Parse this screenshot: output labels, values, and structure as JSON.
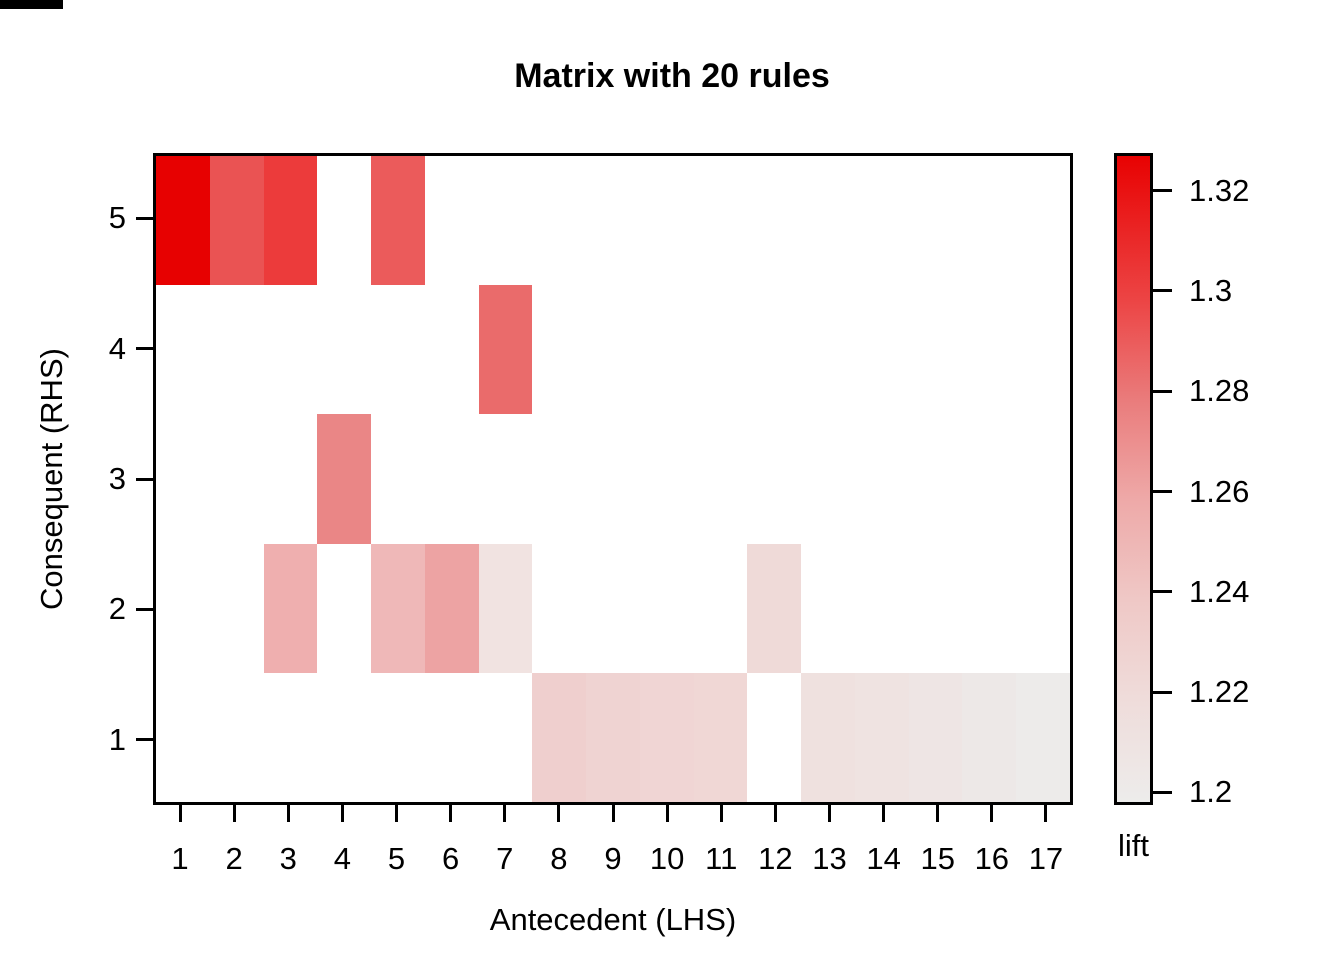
{
  "chart_data": {
    "type": "heatmap",
    "title": "Matrix with 20 rules",
    "xlabel": "Antecedent (LHS)",
    "ylabel": "Consequent (RHS)",
    "x_categories": [
      "1",
      "2",
      "3",
      "4",
      "5",
      "6",
      "7",
      "8",
      "9",
      "10",
      "11",
      "12",
      "13",
      "14",
      "15",
      "16",
      "17"
    ],
    "y_categories": [
      "1",
      "2",
      "3",
      "4",
      "5"
    ],
    "grid": false,
    "empty_cell_color": "#ffffff",
    "colorbar": {
      "label": "lift",
      "position": "right",
      "vmin": 1.1975,
      "vmax": 1.3275,
      "ticks": [
        {
          "label": "1.32",
          "value": 1.32
        },
        {
          "label": "1.3",
          "value": 1.3
        },
        {
          "label": "1.28",
          "value": 1.28
        },
        {
          "label": "1.26",
          "value": 1.26
        },
        {
          "label": "1.24",
          "value": 1.24
        },
        {
          "label": "1.22",
          "value": 1.22
        },
        {
          "label": "1.2",
          "value": 1.2
        }
      ],
      "gradient_top_to_bottom": [
        {
          "pos": 0.0,
          "color": "#E80202"
        },
        {
          "pos": 0.225,
          "color": "#EC4545"
        },
        {
          "pos": 0.379,
          "color": "#EA7C7C"
        },
        {
          "pos": 0.532,
          "color": "#EEA9A8"
        },
        {
          "pos": 0.686,
          "color": "#EFC8C6"
        },
        {
          "pos": 0.839,
          "color": "#EFDCDA"
        },
        {
          "pos": 1.0,
          "color": "#EDECEB"
        }
      ]
    },
    "rules": [
      {
        "lhs": 1,
        "rhs": 5,
        "lift": 1.327,
        "color": "#E70101"
      },
      {
        "lhs": 2,
        "rhs": 5,
        "lift": 1.294,
        "color": "#EA5353"
      },
      {
        "lhs": 3,
        "rhs": 5,
        "lift": 1.303,
        "color": "#EC3B3B"
      },
      {
        "lhs": 5,
        "rhs": 5,
        "lift": 1.291,
        "color": "#EB5B5B"
      },
      {
        "lhs": 7,
        "rhs": 4,
        "lift": 1.285,
        "color": "#EA6B6B"
      },
      {
        "lhs": 4,
        "rhs": 3,
        "lift": 1.276,
        "color": "#EA8686"
      },
      {
        "lhs": 3,
        "rhs": 2,
        "lift": 1.254,
        "color": "#EFAFAF"
      },
      {
        "lhs": 5,
        "rhs": 2,
        "lift": 1.25,
        "color": "#EFB8B8"
      },
      {
        "lhs": 6,
        "rhs": 2,
        "lift": 1.259,
        "color": "#EDA3A3"
      },
      {
        "lhs": 7,
        "rhs": 2,
        "lift": 1.211,
        "color": "#F1E3E1"
      },
      {
        "lhs": 12,
        "rhs": 2,
        "lift": 1.219,
        "color": "#EFDAD8"
      },
      {
        "lhs": 8,
        "rhs": 1,
        "lift": 1.235,
        "color": "#EFCFCE"
      },
      {
        "lhs": 9,
        "rhs": 1,
        "lift": 1.232,
        "color": "#EFD3D2"
      },
      {
        "lhs": 10,
        "rhs": 1,
        "lift": 1.23,
        "color": "#F0D5D4"
      },
      {
        "lhs": 11,
        "rhs": 1,
        "lift": 1.228,
        "color": "#F0D7D5"
      },
      {
        "lhs": 13,
        "rhs": 1,
        "lift": 1.214,
        "color": "#EFE1DF"
      },
      {
        "lhs": 14,
        "rhs": 1,
        "lift": 1.211,
        "color": "#EFE3E1"
      },
      {
        "lhs": 15,
        "rhs": 1,
        "lift": 1.208,
        "color": "#EEE5E4"
      },
      {
        "lhs": 16,
        "rhs": 1,
        "lift": 1.203,
        "color": "#EDE8E7"
      },
      {
        "lhs": 17,
        "rhs": 1,
        "lift": 1.199,
        "color": "#EDEBEA"
      }
    ]
  }
}
